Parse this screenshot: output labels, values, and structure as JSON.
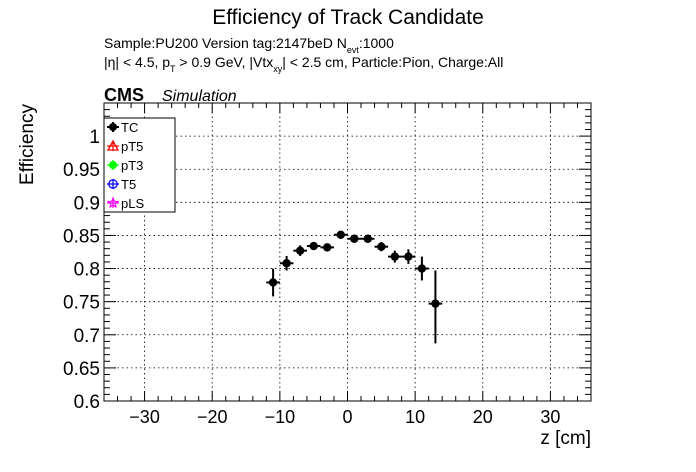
{
  "chart_data": {
    "type": "scatter",
    "title": "Efficiency of Track Candidate",
    "subtitle_line1": {
      "prefix": "Sample:PU200   Version tag:2147beD  N",
      "sub": "evt",
      "suffix": ":1000"
    },
    "subtitle_line2": {
      "part1": "|η| < 4.5, p",
      "sub1": "T",
      "part2": " > 0.9 GeV, |Vtx",
      "sub2": "xy",
      "part3": "| < 2.5 cm, Particle:Pion, Charge:All"
    },
    "cms_label": "CMS",
    "simulation_label": "Simulation",
    "xlabel": "z [cm]",
    "ylabel": "Efficiency",
    "xlim": [
      -36,
      36
    ],
    "ylim": [
      0.6,
      1.05
    ],
    "x_ticks": [
      -30,
      -20,
      -10,
      0,
      10,
      20,
      30
    ],
    "x_tick_labels": [
      "−30",
      "−20",
      "−10",
      "0",
      "10",
      "20",
      "30"
    ],
    "y_ticks": [
      0.6,
      0.65,
      0.7,
      0.75,
      0.8,
      0.85,
      0.9,
      0.95,
      1
    ],
    "y_tick_labels": [
      "0.6",
      "0.65",
      "0.7",
      "0.75",
      "0.8",
      "0.85",
      "0.9",
      "0.95",
      "1"
    ],
    "grid": true,
    "legend_position": "top-left",
    "legend": [
      {
        "name": "TC",
        "color": "#000000",
        "marker": "filled-circle"
      },
      {
        "name": "pT5",
        "color": "#ff0000",
        "marker": "open-triangle"
      },
      {
        "name": "pT3",
        "color": "#00ff00",
        "marker": "filled-circle"
      },
      {
        "name": "T5",
        "color": "#0000ff",
        "marker": "open-circle"
      },
      {
        "name": "pLS",
        "color": "#ff00ff",
        "marker": "open-star"
      }
    ],
    "series": [
      {
        "name": "TC",
        "color": "#000000",
        "x": [
          -11,
          -9,
          -7,
          -5,
          -3,
          -1,
          1,
          3,
          5,
          7,
          9,
          11,
          13
        ],
        "x_err": [
          1,
          1,
          1,
          1,
          1,
          1,
          1,
          1,
          1,
          1,
          1,
          1,
          1
        ],
        "y": [
          0.779,
          0.808,
          0.827,
          0.834,
          0.832,
          0.851,
          0.845,
          0.845,
          0.833,
          0.818,
          0.818,
          0.8,
          0.747
        ],
        "y_err_low": [
          0.021,
          0.011,
          0.008,
          0.005,
          0.005,
          0.005,
          0.005,
          0.006,
          0.007,
          0.009,
          0.011,
          0.018,
          0.06
        ],
        "y_err_high": [
          0.021,
          0.011,
          0.008,
          0.005,
          0.005,
          0.005,
          0.005,
          0.006,
          0.007,
          0.009,
          0.011,
          0.018,
          0.05
        ]
      }
    ]
  }
}
